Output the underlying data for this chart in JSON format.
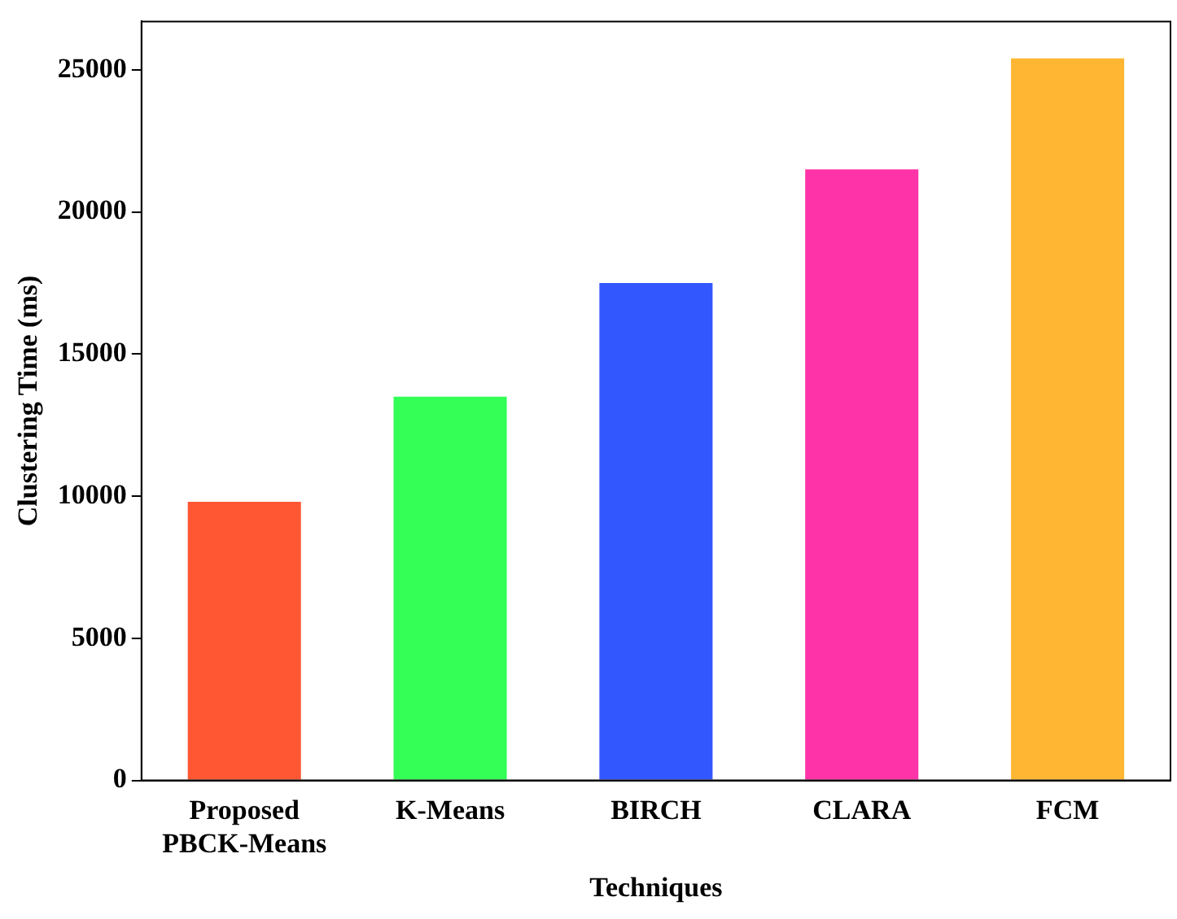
{
  "chart_data": {
    "type": "bar",
    "xlabel": "Techniques",
    "ylabel": "Clustering Time (ms)",
    "categories": [
      "Proposed\nPBCK-Means",
      "K-Means",
      "BIRCH",
      "CLARA",
      "FCM"
    ],
    "values": [
      9800,
      13500,
      17500,
      21500,
      25400
    ],
    "colors": [
      "#ff5733",
      "#33ff57",
      "#3357ff",
      "#ff33a8",
      "#ffb733"
    ],
    "ylim": [
      0,
      26700
    ],
    "yticks": [
      0,
      5000,
      10000,
      15000,
      20000,
      25000
    ],
    "grid": false,
    "legend": false
  }
}
